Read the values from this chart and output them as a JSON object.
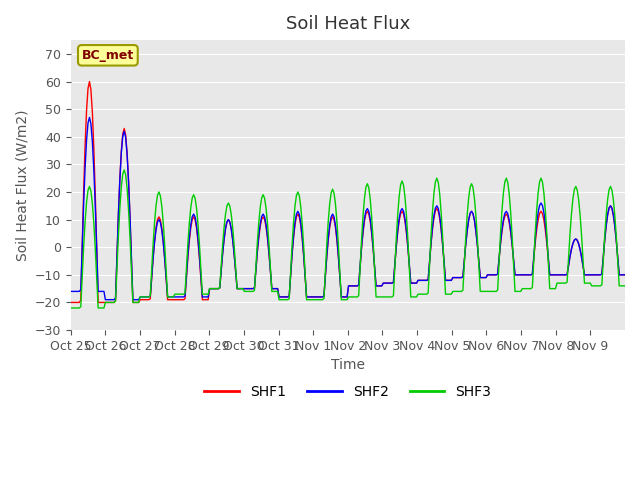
{
  "title": "Soil Heat Flux",
  "ylabel": "Soil Heat Flux (W/m2)",
  "xlabel": "Time",
  "ylim": [
    -30,
    75
  ],
  "yticks": [
    -30,
    -20,
    -10,
    0,
    10,
    20,
    30,
    40,
    50,
    60,
    70
  ],
  "bg_color": "#e8e8e8",
  "fig_color": "#ffffff",
  "line_colors": {
    "SHF1": "#ff0000",
    "SHF2": "#0000ff",
    "SHF3": "#00cc00"
  },
  "legend_label": "BC_met",
  "x_tick_labels": [
    "Oct 25",
    "Oct 26",
    "Oct 27",
    "Oct 28",
    "Oct 29",
    "Oct 30",
    "Oct 31",
    "Nov 1",
    "Nov 2",
    "Nov 3",
    "Nov 4",
    "Nov 5",
    "Nov 6",
    "Nov 7",
    "Nov 8",
    "Nov 9"
  ],
  "grid_color": "#ffffff",
  "title_fontsize": 13,
  "axis_fontsize": 10,
  "tick_fontsize": 9,
  "day_peaks_shf1": [
    60,
    43,
    11,
    11,
    10,
    11,
    12,
    11,
    13,
    13,
    14,
    13,
    12,
    13,
    3,
    15
  ],
  "day_peaks_shf2": [
    47,
    42,
    10,
    12,
    10,
    12,
    13,
    12,
    14,
    14,
    15,
    13,
    13,
    16,
    3,
    15
  ],
  "day_peaks_shf3": [
    22,
    28,
    20,
    19,
    16,
    19,
    20,
    21,
    23,
    24,
    25,
    23,
    25,
    25,
    22,
    22
  ],
  "night_vals_shf1": [
    -20,
    -20,
    -19,
    -19,
    -15,
    -15,
    -18,
    -18,
    -14,
    -13,
    -12,
    -11,
    -10,
    -10,
    -10,
    -10
  ],
  "night_vals_shf2": [
    -16,
    -19,
    -18,
    -18,
    -15,
    -15,
    -18,
    -18,
    -14,
    -13,
    -12,
    -11,
    -10,
    -10,
    -10,
    -10
  ],
  "night_vals_shf3": [
    -22,
    -20,
    -18,
    -17,
    -15,
    -16,
    -19,
    -19,
    -18,
    -18,
    -17,
    -16,
    -16,
    -15,
    -13,
    -14
  ]
}
